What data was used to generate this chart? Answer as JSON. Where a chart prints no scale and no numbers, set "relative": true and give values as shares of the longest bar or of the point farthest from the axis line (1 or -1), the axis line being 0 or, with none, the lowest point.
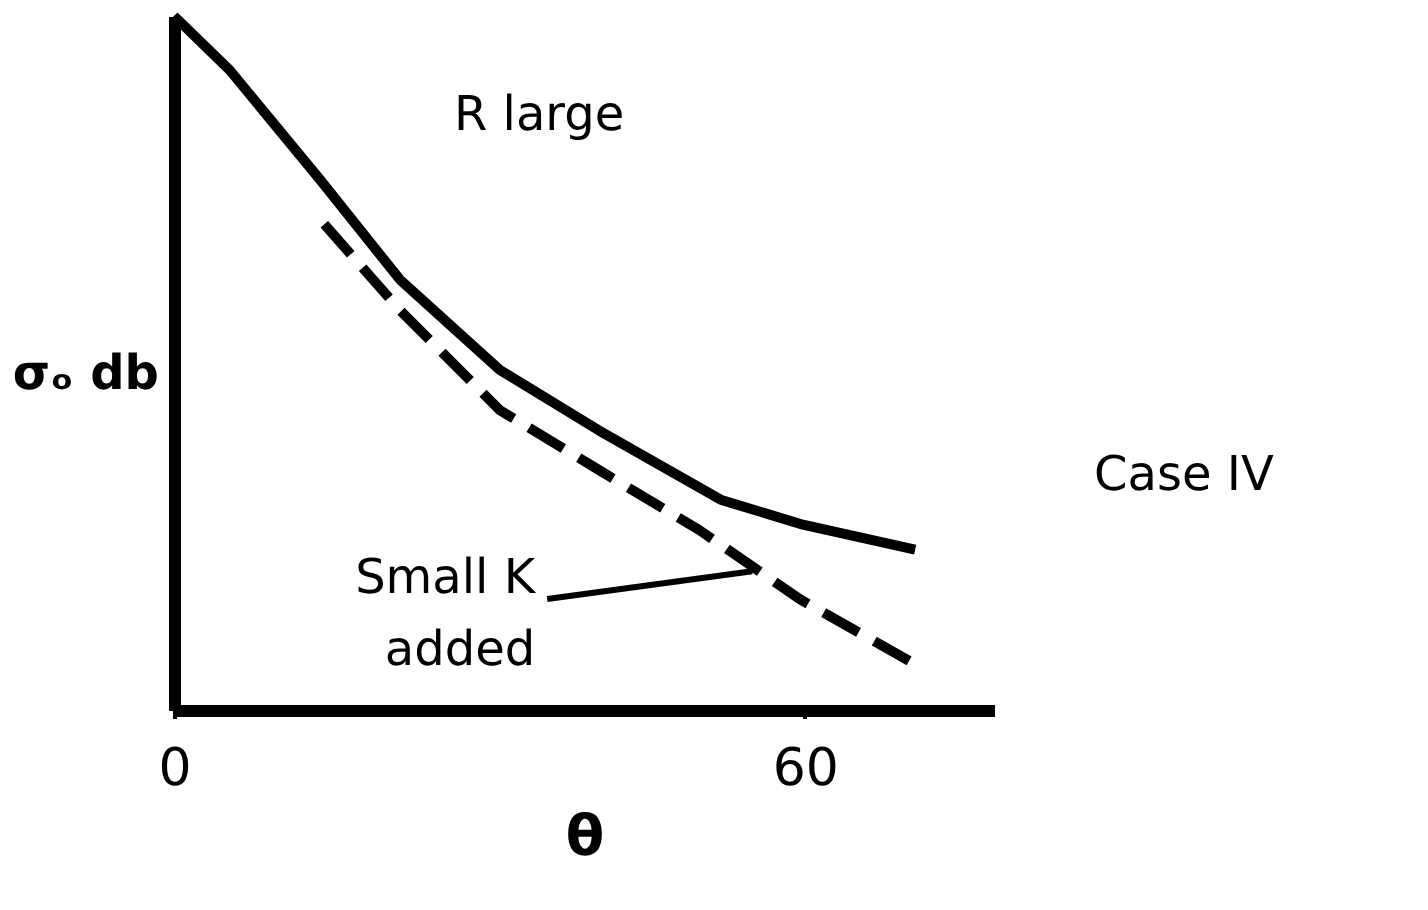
{
  "chart_data": {
    "type": "line",
    "relative": true,
    "xlabel": "θ",
    "ylabel": "σₒ db",
    "xlim": [
      0,
      78
    ],
    "xticks": [
      0,
      60
    ],
    "grid": false,
    "marker": "none",
    "series": [
      {
        "color": "#000000",
        "line_style": "solid",
        "x": [
          0,
          5.3,
          13.9,
          21.5,
          31,
          40.4,
          52,
          59.6,
          70.5
        ],
        "values": [
          1,
          0.922,
          0.764,
          0.62,
          0.49,
          0.403,
          0.303,
          0.268,
          0.231
        ]
      },
      {
        "color": "#000000",
        "line_style": "dashed",
        "x": [
          14.3,
          21.5,
          31,
          40.4,
          50,
          59.6,
          70.5
        ],
        "values": [
          0.7,
          0.576,
          0.432,
          0.346,
          0.259,
          0.159,
          0.066
        ]
      }
    ],
    "annotations": [
      "R large",
      "Case IV",
      {
        "text": "Small K\nadded",
        "x": 55,
        "y": 0.2
      }
    ]
  }
}
